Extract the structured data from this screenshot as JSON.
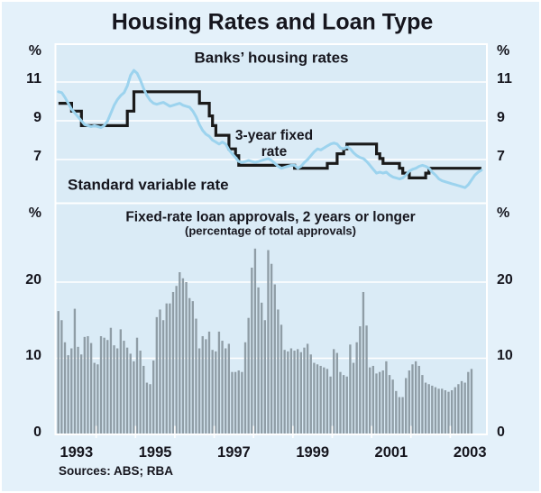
{
  "page": {
    "title": "Housing Rates and Loan Type",
    "sources": "Sources: ABS; RBA",
    "percent_sign": "%"
  },
  "colors": {
    "outer_bg": "#e4f1fa",
    "panel_bg": "#daebf6",
    "grid": "#ffffff",
    "bar": "#8f9da6",
    "svr_line": "#1a1a1a",
    "fixed_line": "#9cd3ee",
    "text": "#16161e"
  },
  "top_panel": {
    "title": "Banks’ housing rates",
    "label_fixed_line1": "3-year fixed",
    "label_fixed_line2": "rate",
    "label_svr": "Standard variable rate",
    "y_ticks": [
      "11",
      "9",
      "7"
    ]
  },
  "bottom_panel": {
    "title": "Fixed-rate loan approvals, 2 years or longer",
    "subtitle": "(percentage of total approvals)",
    "y_ticks": [
      "20",
      "10",
      "0"
    ]
  },
  "x_axis": {
    "year_labels": [
      "1993",
      "1995",
      "1997",
      "1999",
      "2001",
      "2003"
    ]
  },
  "chart_data": [
    {
      "type": "line",
      "title": "Banks' housing rates",
      "x_start": "1993-01",
      "frequency": "monthly",
      "ylabel": "%",
      "ylim": [
        4.8,
        13.2
      ],
      "yticks": [
        7,
        9,
        11
      ],
      "grid": true,
      "series": [
        {
          "name": "Standard variable rate",
          "style": "step",
          "values": [
            9.9,
            9.9,
            9.9,
            9.9,
            9.5,
            9.5,
            9.5,
            8.75,
            8.75,
            8.75,
            8.75,
            8.75,
            8.75,
            8.75,
            8.75,
            8.75,
            8.75,
            8.75,
            8.75,
            8.75,
            8.75,
            9.5,
            9.5,
            10.5,
            10.5,
            10.5,
            10.5,
            10.5,
            10.5,
            10.5,
            10.5,
            10.5,
            10.5,
            10.5,
            10.5,
            10.5,
            10.5,
            10.5,
            10.5,
            10.5,
            10.5,
            10.5,
            10.5,
            9.9,
            9.9,
            9.9,
            9.25,
            8.75,
            8.25,
            8.25,
            8.25,
            8.25,
            7.55,
            7.55,
            7.2,
            6.7,
            6.7,
            6.7,
            6.7,
            6.7,
            6.7,
            6.7,
            6.7,
            6.7,
            6.7,
            6.7,
            6.7,
            6.7,
            6.7,
            6.7,
            6.7,
            6.7,
            6.55,
            6.55,
            6.55,
            6.55,
            6.55,
            6.55,
            6.55,
            6.55,
            6.55,
            6.55,
            6.8,
            6.8,
            6.8,
            7.3,
            7.3,
            7.55,
            7.8,
            7.8,
            7.8,
            7.8,
            7.8,
            7.8,
            7.8,
            7.8,
            7.8,
            7.3,
            7.05,
            6.8,
            6.8,
            6.8,
            6.8,
            6.8,
            6.55,
            6.3,
            6.3,
            6.05,
            6.05,
            6.05,
            6.05,
            6.05,
            6.3,
            6.55,
            6.55,
            6.55,
            6.55,
            6.55,
            6.55,
            6.55,
            6.55,
            6.55,
            6.55,
            6.55,
            6.55,
            6.55,
            6.55,
            6.55,
            6.55,
            6.55
          ]
        },
        {
          "name": "3-year fixed rate",
          "style": "line",
          "values": [
            10.5,
            10.45,
            10.2,
            9.9,
            9.6,
            9.4,
            9.2,
            9.0,
            8.8,
            8.75,
            8.7,
            8.75,
            8.7,
            8.65,
            8.75,
            9.0,
            9.4,
            9.8,
            10.1,
            10.3,
            10.45,
            10.8,
            11.35,
            11.6,
            11.45,
            11.1,
            10.65,
            10.3,
            10.05,
            9.9,
            9.85,
            9.9,
            9.95,
            9.85,
            9.75,
            9.8,
            9.85,
            9.9,
            9.8,
            9.75,
            9.7,
            9.5,
            9.2,
            8.8,
            8.5,
            8.3,
            8.2,
            8.0,
            7.9,
            7.8,
            7.9,
            7.8,
            7.5,
            7.3,
            7.1,
            6.9,
            6.85,
            6.9,
            6.95,
            6.9,
            6.85,
            6.9,
            6.95,
            7.0,
            7.05,
            6.95,
            6.8,
            6.65,
            6.55,
            6.6,
            6.65,
            6.7,
            6.7,
            6.55,
            6.65,
            6.85,
            7.0,
            7.2,
            7.4,
            7.55,
            7.5,
            7.6,
            7.7,
            7.8,
            7.85,
            7.8,
            7.6,
            7.55,
            7.65,
            7.55,
            7.35,
            7.2,
            7.1,
            7.05,
            6.9,
            6.7,
            6.5,
            6.3,
            6.35,
            6.3,
            6.35,
            6.2,
            6.1,
            6.05,
            6.0,
            6.05,
            6.2,
            6.4,
            6.5,
            6.55,
            6.65,
            6.7,
            6.65,
            6.55,
            6.35,
            6.2,
            6.0,
            5.9,
            5.85,
            5.8,
            5.75,
            5.7,
            5.65,
            5.6,
            5.55,
            5.7,
            5.95,
            6.2,
            6.35,
            6.45
          ]
        }
      ]
    },
    {
      "type": "bar",
      "title": "Fixed-rate loan approvals, 2 years or longer",
      "subtitle": "(percentage of total approvals)",
      "x_start": "1993-01",
      "frequency": "monthly",
      "ylabel": "%",
      "ylim": [
        0,
        30.4
      ],
      "yticks": [
        0,
        10,
        20
      ],
      "grid": true,
      "values": [
        16.2,
        15.0,
        12.1,
        10.4,
        11.3,
        16.5,
        11.5,
        10.5,
        12.8,
        12.9,
        12.0,
        9.4,
        9.2,
        12.9,
        12.7,
        12.4,
        14.0,
        11.7,
        11.3,
        13.8,
        12.3,
        11.4,
        10.6,
        9.6,
        12.7,
        11.0,
        9.0,
        6.8,
        6.6,
        9.7,
        15.4,
        16.4,
        15.0,
        17.2,
        17.2,
        18.7,
        19.5,
        21.3,
        20.5,
        20.0,
        17.9,
        17.5,
        15.2,
        11.3,
        12.9,
        12.5,
        13.5,
        11.1,
        10.9,
        13.5,
        12.3,
        11.3,
        11.9,
        8.2,
        8.2,
        8.4,
        8.2,
        12.1,
        15.3,
        21.9,
        24.4,
        19.3,
        17.3,
        15.0,
        24.2,
        22.4,
        19.7,
        16.4,
        14.4,
        11.1,
        10.9,
        11.3,
        11.0,
        11.2,
        10.8,
        11.4,
        11.9,
        10.5,
        9.4,
        9.2,
        9.0,
        8.8,
        8.6,
        7.6,
        11.2,
        10.7,
        8.2,
        7.8,
        7.6,
        11.8,
        9.4,
        12.1,
        14.2,
        18.7,
        14.3,
        8.8,
        9.0,
        8.0,
        8.2,
        8.4,
        9.6,
        7.8,
        7.2,
        5.7,
        4.9,
        4.9,
        7.4,
        8.4,
        9.2,
        9.6,
        9.0,
        7.8,
        6.8,
        6.6,
        6.4,
        6.2,
        6.0,
        6.0,
        5.8,
        5.6,
        5.8,
        6.2,
        6.6,
        7.0,
        6.8,
        8.2,
        8.6
      ]
    }
  ]
}
